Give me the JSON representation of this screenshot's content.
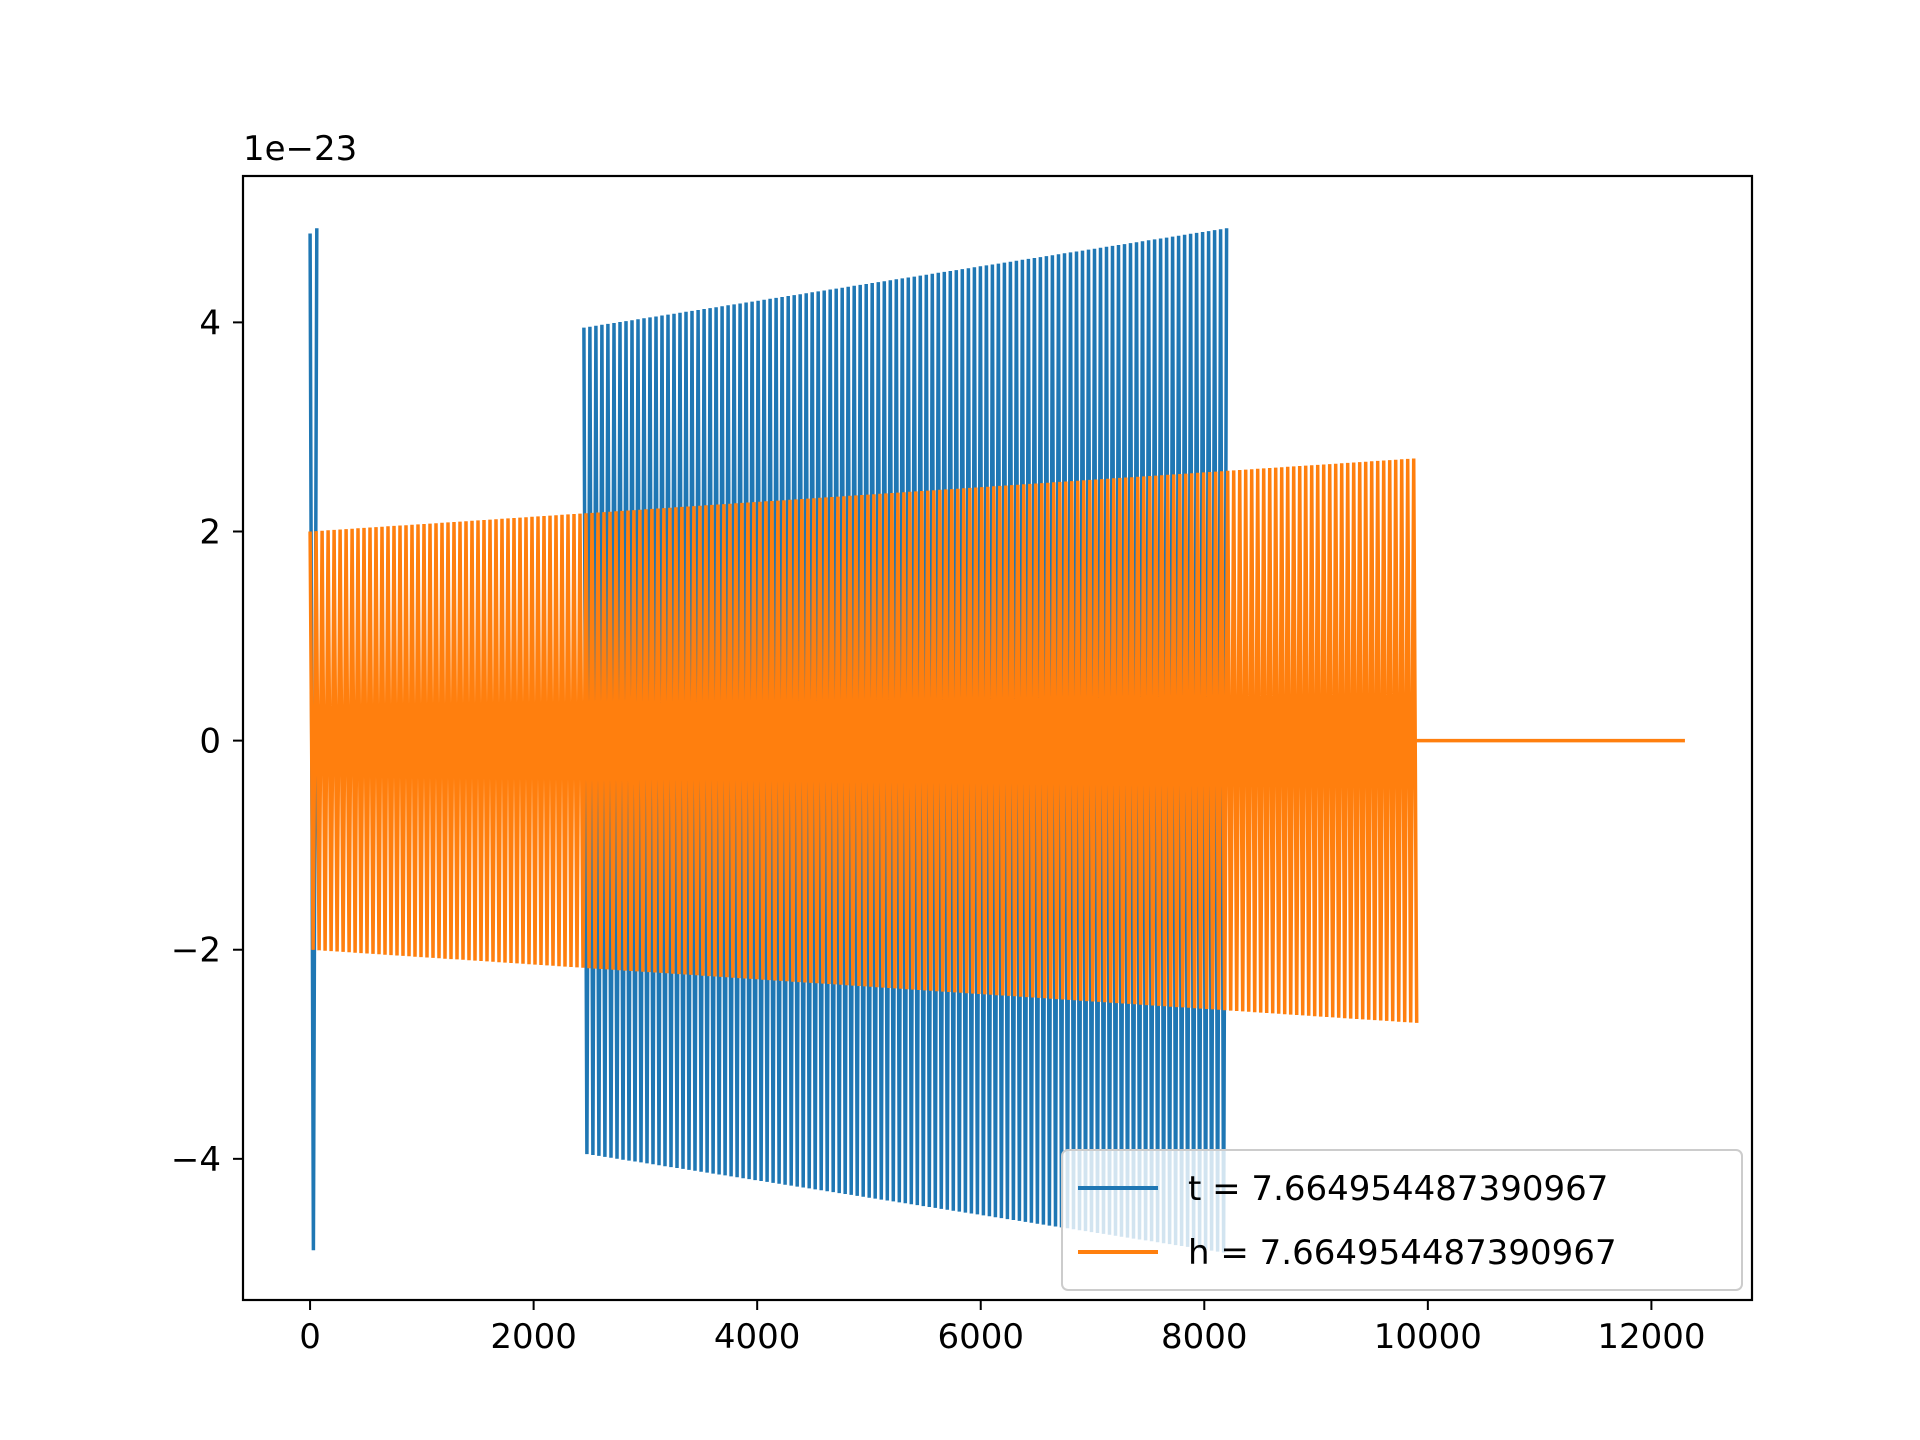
{
  "chart_data": {
    "type": "line",
    "title": "",
    "xlabel": "",
    "ylabel": "",
    "y_offset_label": "1e−23",
    "xlim": [
      -600,
      12900
    ],
    "ylim": [
      -5.35,
      5.4
    ],
    "x_ticks": [
      0,
      2000,
      4000,
      6000,
      8000,
      10000,
      12000
    ],
    "x_tick_labels": [
      "0",
      "2000",
      "4000",
      "6000",
      "8000",
      "10000",
      "12000"
    ],
    "y_ticks": [
      -4,
      -2,
      0,
      2,
      4
    ],
    "y_tick_labels": [
      "−4",
      "−2",
      "0",
      "2",
      "4"
    ],
    "grid": false,
    "legend_position": "lower-right",
    "series": [
      {
        "name": "t = 7.664954487390967",
        "color": "#1f77b4",
        "style": "dense-oscillation",
        "segments": [
          {
            "x_start": 0,
            "x_end": 60,
            "amp_start": 4.85,
            "amp_end": 4.9
          },
          {
            "x_start": 2450,
            "x_end": 8200,
            "amp_start": 3.95,
            "amp_end": 4.9
          }
        ]
      },
      {
        "name": "h = 7.664954487390967",
        "color": "#ff7f0e",
        "style": "dense-oscillation",
        "segments": [
          {
            "x_start": 0,
            "x_end": 9900,
            "amp_start": 2.0,
            "amp_end": 2.7
          },
          {
            "x_start": 9900,
            "x_end": 12300,
            "amp_start": 0.0,
            "amp_end": 0.0
          }
        ]
      }
    ]
  }
}
